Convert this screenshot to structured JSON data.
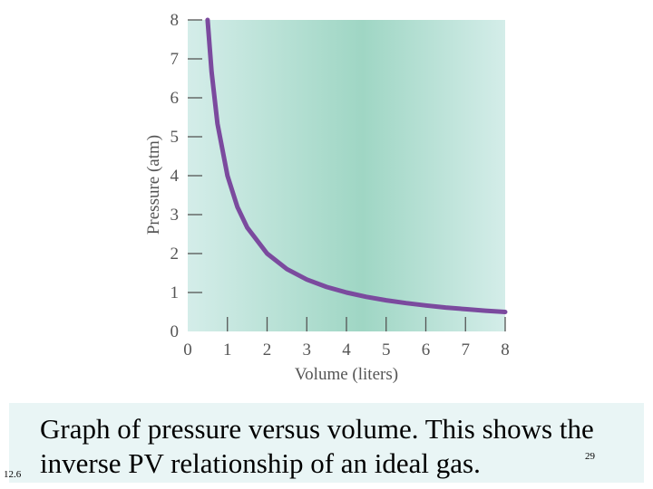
{
  "chart_data": {
    "type": "line",
    "xlabel": "Volume (liters)",
    "ylabel": "Pressure (atm)",
    "xlim": [
      0,
      8
    ],
    "ylim": [
      0,
      8
    ],
    "xticks": [
      "0",
      "1",
      "2",
      "3",
      "4",
      "5",
      "6",
      "7",
      "8"
    ],
    "yticks": [
      "0",
      "1",
      "2",
      "3",
      "4",
      "5",
      "6",
      "7",
      "8"
    ],
    "series": [
      {
        "x": [
          0.5,
          0.6,
          0.75,
          1,
          1.25,
          1.5,
          2,
          2.5,
          3,
          3.5,
          4,
          4.5,
          5,
          5.5,
          6,
          6.5,
          7,
          7.5,
          8
        ],
        "y": [
          8,
          6.667,
          5.333,
          4,
          3.2,
          2.667,
          2,
          1.6,
          1.333,
          1.143,
          1,
          0.889,
          0.8,
          0.727,
          0.667,
          0.615,
          0.571,
          0.533,
          0.5
        ]
      }
    ],
    "grid": false,
    "colors": {
      "curve": "#7b4a9e",
      "bg_edge": "#d4ede9",
      "bg_center": "#9fd6c4"
    }
  },
  "caption": {
    "text": "Graph of pressure versus volume.  This shows the inverse PV relationship of an ideal gas.",
    "slide_number": "29",
    "figure_label": "12.6"
  }
}
